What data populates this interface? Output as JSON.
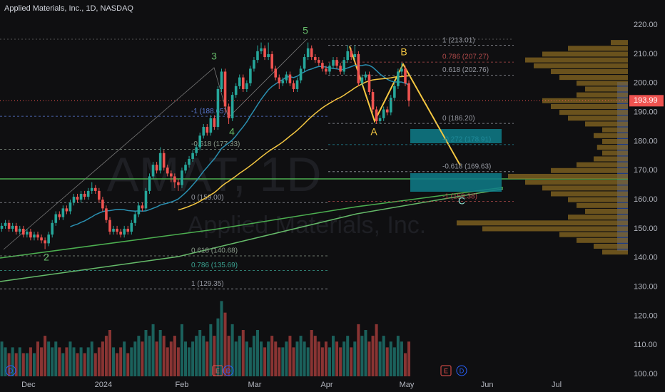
{
  "chart_data": {
    "type": "candlestick",
    "title": "Applied Materials, Inc., 1D, NASDAQ",
    "watermark": {
      "symbol": "AMAT, 1D",
      "name": "Applied Materials, Inc."
    },
    "up_color": "#26a69a",
    "down_color": "#ef5350",
    "open": [
      150,
      151,
      152,
      150,
      151,
      149,
      150,
      148,
      149,
      147,
      148,
      147,
      146,
      145,
      148,
      152,
      155,
      154,
      157,
      156,
      159,
      161,
      160,
      162,
      161,
      163,
      164,
      163,
      160,
      157,
      153,
      149,
      150,
      149,
      148,
      150,
      149,
      152,
      155,
      158,
      157,
      163,
      168,
      172,
      170,
      176,
      171,
      169,
      168,
      166,
      165,
      170,
      172,
      174,
      176,
      178,
      182,
      185,
      183,
      188,
      185,
      198,
      204,
      192,
      188,
      196,
      199,
      202,
      198,
      200,
      205,
      208,
      211,
      212,
      209,
      210,
      205,
      202,
      200,
      201,
      203,
      200,
      198,
      201,
      205,
      209,
      212,
      209,
      208,
      207,
      205,
      204,
      206,
      208,
      206,
      204,
      208,
      211,
      209,
      210,
      200,
      202,
      203,
      197,
      191,
      187,
      188,
      191,
      190,
      195,
      199,
      204,
      205,
      200
    ],
    "high": [
      152,
      153,
      153,
      152,
      152,
      151,
      151,
      150,
      150,
      149,
      149,
      148,
      147,
      149,
      153,
      156,
      156,
      158,
      158,
      160,
      162,
      162,
      163,
      163,
      164,
      166,
      165,
      164,
      161,
      158,
      154,
      151,
      151,
      150,
      151,
      151,
      153,
      156,
      159,
      159,
      164,
      169,
      173,
      173,
      178,
      177,
      172,
      170,
      169,
      167,
      171,
      173,
      175,
      177,
      179,
      183,
      186,
      186,
      189,
      189,
      199,
      205,
      205,
      193,
      197,
      200,
      203,
      203,
      201,
      206,
      209,
      213,
      214,
      213,
      214,
      211,
      206,
      203,
      202,
      204,
      204,
      201,
      202,
      206,
      210,
      214,
      213,
      210,
      209,
      208,
      206,
      207,
      209,
      209,
      207,
      209,
      213,
      212,
      213,
      211,
      203,
      204,
      204,
      198,
      192,
      189,
      192,
      192,
      196,
      200,
      205,
      207,
      206,
      201
    ],
    "low": [
      149,
      150,
      149,
      149,
      148,
      148,
      147,
      147,
      146,
      146,
      146,
      145,
      143,
      144,
      147,
      151,
      153,
      153,
      155,
      155,
      158,
      159,
      159,
      160,
      160,
      162,
      162,
      159,
      156,
      152,
      148,
      148,
      148,
      147,
      147,
      148,
      148,
      151,
      154,
      156,
      156,
      162,
      167,
      169,
      169,
      170,
      168,
      166,
      164,
      163,
      164,
      169,
      171,
      173,
      175,
      177,
      181,
      182,
      182,
      184,
      184,
      197,
      190,
      186,
      187,
      195,
      198,
      197,
      197,
      199,
      204,
      207,
      210,
      208,
      208,
      204,
      201,
      198,
      199,
      200,
      199,
      197,
      197,
      200,
      204,
      208,
      208,
      207,
      206,
      204,
      203,
      203,
      205,
      205,
      203,
      203,
      207,
      208,
      208,
      199,
      199,
      201,
      196,
      190,
      186,
      186,
      187,
      189,
      189,
      194,
      198,
      203,
      199,
      192
    ],
    "close": [
      151,
      152,
      150,
      151,
      149,
      150,
      148,
      149,
      147,
      148,
      147,
      146,
      145,
      148,
      152,
      155,
      154,
      157,
      156,
      159,
      161,
      160,
      162,
      161,
      163,
      164,
      163,
      160,
      157,
      153,
      149,
      150,
      149,
      148,
      150,
      149,
      152,
      155,
      158,
      157,
      163,
      168,
      172,
      170,
      176,
      171,
      169,
      168,
      166,
      165,
      170,
      172,
      174,
      176,
      178,
      182,
      185,
      183,
      188,
      185,
      198,
      204,
      192,
      188,
      196,
      199,
      202,
      198,
      200,
      205,
      208,
      211,
      212,
      209,
      210,
      205,
      202,
      200,
      201,
      203,
      200,
      198,
      201,
      205,
      209,
      212,
      209,
      208,
      207,
      205,
      204,
      206,
      208,
      206,
      204,
      208,
      211,
      209,
      210,
      200,
      202,
      203,
      197,
      191,
      187,
      188,
      191,
      190,
      195,
      199,
      204,
      205,
      200,
      193.99
    ],
    "volume": [
      6,
      5,
      4,
      5,
      4,
      5,
      4,
      4,
      5,
      4,
      6,
      5,
      7,
      6,
      5,
      6,
      5,
      4,
      5,
      6,
      5,
      4,
      5,
      4,
      5,
      6,
      4,
      5,
      6,
      7,
      8,
      5,
      4,
      5,
      6,
      4,
      5,
      6,
      7,
      6,
      8,
      7,
      9,
      6,
      8,
      7,
      5,
      6,
      7,
      5,
      9,
      6,
      5,
      6,
      7,
      8,
      7,
      6,
      9,
      7,
      10,
      13,
      11,
      7,
      9,
      6,
      7,
      8,
      6,
      5,
      7,
      8,
      6,
      5,
      6,
      7,
      6,
      5,
      5,
      6,
      7,
      5,
      6,
      7,
      6,
      5,
      8,
      7,
      6,
      5,
      6,
      5,
      7,
      6,
      5,
      6,
      7,
      5,
      6,
      9,
      7,
      8,
      6,
      7,
      9,
      6,
      7,
      5,
      6,
      5,
      7,
      6,
      4,
      6
    ],
    "vlim": [
      0,
      16
    ],
    "xlim": [
      -0.5,
      173.8
    ],
    "xticks": [
      {
        "value": 7.4,
        "label": "Dec"
      },
      {
        "value": 28.2,
        "label": "2024"
      },
      {
        "value": 50,
        "label": "Feb"
      },
      {
        "value": 70.2,
        "label": "Mar"
      },
      {
        "value": 90.2,
        "label": "Apr"
      },
      {
        "value": 112.4,
        "label": "May"
      },
      {
        "value": 134.7,
        "label": "Jun"
      },
      {
        "value": 154,
        "label": "Jul"
      }
    ],
    "ylim": [
      99.3,
      228.6
    ],
    "yticks": [
      {
        "value": 100,
        "label": "100.00"
      },
      {
        "value": 110,
        "label": "110.00"
      },
      {
        "value": 120,
        "label": "120.00"
      },
      {
        "value": 130,
        "label": "130.00"
      },
      {
        "value": 140,
        "label": "140.00"
      },
      {
        "value": 150,
        "label": "150.00"
      },
      {
        "value": 160,
        "label": "160.00"
      },
      {
        "value": 170,
        "label": "170.00"
      },
      {
        "value": 180,
        "label": "180.00"
      },
      {
        "value": 190,
        "label": "190.00"
      },
      {
        "value": 200,
        "label": "200.00"
      },
      {
        "value": 210,
        "label": "210.00"
      },
      {
        "value": 220,
        "label": "220.00"
      }
    ],
    "fib_right": [
      {
        "label": "1 (213.01)",
        "value": 213.01,
        "color": "#9598a1"
      },
      {
        "label": "0.786 (207.27)",
        "value": 207.27,
        "color": "#b04a4a"
      },
      {
        "label": "0.618 (202.76)",
        "value": 202.76,
        "color": "#9598a1"
      },
      {
        "label": "0 (186.20)",
        "value": 186.2,
        "color": "#9598a1"
      },
      {
        "label": "-0.272 (178.91)",
        "value": 178.91,
        "color": "#1f8a9a"
      },
      {
        "label": "-0.618 (169.63)",
        "value": 169.63,
        "color": "#9598a1"
      },
      {
        "label": "-1 (159.38)",
        "value": 159.38,
        "color": "#b04a4a"
      }
    ],
    "fib_left": [
      {
        "label": "-1 (188.65)",
        "value": 188.65,
        "color": "#5b7bd5"
      },
      {
        "label": "-0.618 (177.33)",
        "value": 177.33,
        "color": "#8a9a8a"
      },
      {
        "label": "0 (159.00)",
        "value": 159.0,
        "color": "#9598a1"
      },
      {
        "label": "0.618 (140.68)",
        "value": 140.68,
        "color": "#8a9a8a"
      },
      {
        "label": "0.786 (135.69)",
        "value": 135.69,
        "color": "#3aa08f"
      },
      {
        "label": "1 (129.35)",
        "value": 129.35,
        "color": "#9598a1"
      }
    ],
    "wave_labels": [
      "2",
      "3",
      "4",
      "5",
      "A",
      "B",
      "C"
    ],
    "events": [
      "D",
      "E",
      "D",
      "E",
      "D"
    ],
    "profile_levels": [
      142,
      144,
      146,
      148,
      150,
      152,
      154,
      156,
      158,
      160,
      162,
      164,
      166,
      168,
      170,
      172,
      174,
      176,
      178,
      180,
      182,
      184,
      186,
      188,
      190,
      192,
      194,
      196,
      198,
      200,
      202,
      204,
      206,
      208,
      210,
      212,
      214
    ],
    "profile_values": [
      15,
      20,
      30,
      40,
      85,
      100,
      35,
      25,
      30,
      35,
      45,
      50,
      60,
      70,
      45,
      30,
      20,
      15,
      18,
      15,
      20,
      15,
      25,
      35,
      40,
      45,
      50,
      30,
      25,
      30,
      40,
      45,
      55,
      60,
      50,
      35,
      10
    ]
  }
}
